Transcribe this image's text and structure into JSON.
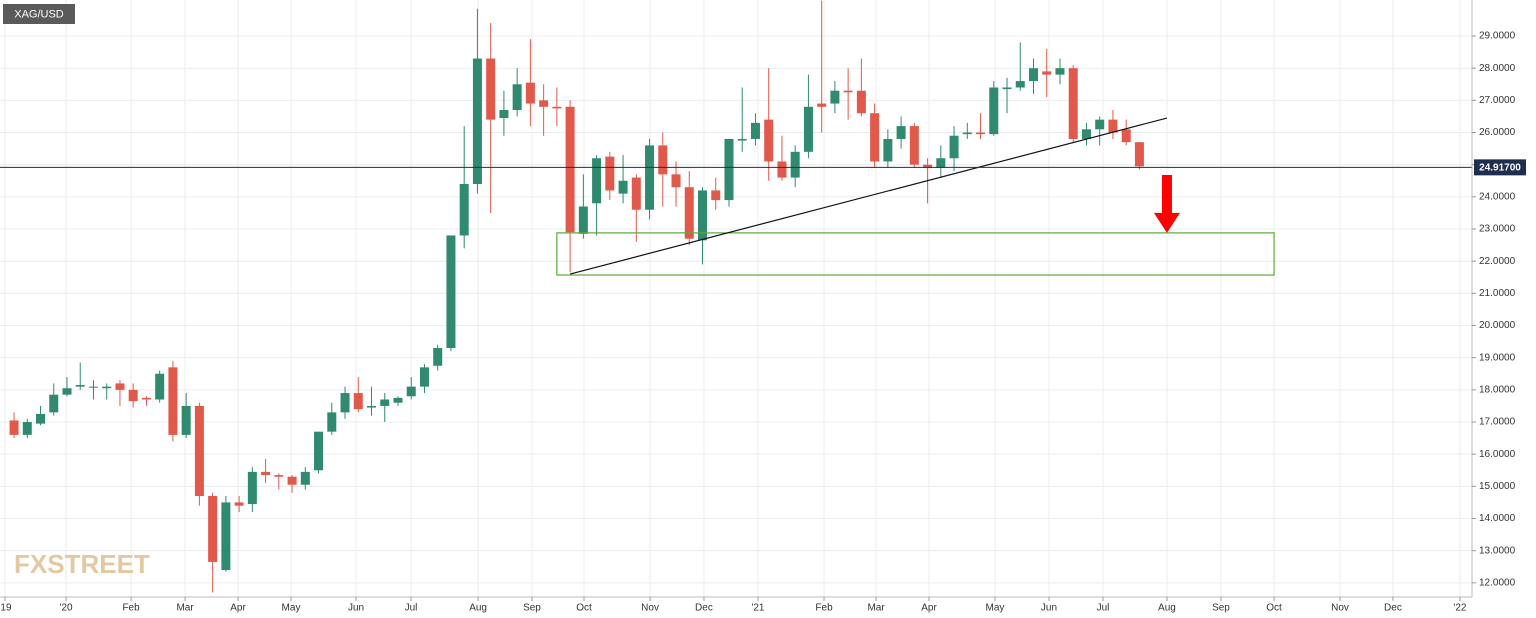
{
  "chart_data": {
    "type": "candlestick",
    "symbol": "XAG/USD",
    "watermark": "FXSTREET",
    "up_color": "#2f8a6f",
    "down_color": "#e0594b",
    "grid": true,
    "x": [
      0,
      1,
      2,
      3,
      4,
      5,
      6,
      7,
      8,
      9,
      10,
      11,
      12,
      13,
      14,
      15,
      16,
      17,
      18,
      19,
      20,
      21,
      22,
      23,
      24,
      25,
      26,
      27,
      28,
      29,
      30,
      31,
      32,
      33,
      34,
      35,
      36,
      37,
      38,
      39,
      40,
      41,
      42,
      43,
      44,
      45,
      46,
      47,
      48,
      49,
      50,
      51,
      52,
      53,
      54,
      55,
      56,
      57,
      58,
      59,
      60,
      61,
      62,
      63,
      64,
      65,
      66,
      67,
      68,
      69,
      70,
      71,
      72,
      73,
      74,
      75,
      76,
      77,
      78,
      79,
      80,
      81,
      82,
      83,
      84,
      85
    ],
    "open": [
      17.05,
      16.6,
      16.95,
      17.3,
      17.85,
      18.1,
      18.1,
      18.05,
      18.2,
      18.0,
      17.75,
      17.7,
      18.7,
      16.6,
      17.5,
      14.7,
      12.4,
      14.5,
      14.45,
      15.45,
      15.35,
      15.3,
      15.05,
      15.5,
      16.7,
      17.3,
      17.9,
      17.45,
      17.5,
      17.6,
      17.8,
      18.1,
      18.75,
      19.3,
      22.8,
      24.4,
      28.3,
      26.45,
      26.7,
      27.55,
      27.0,
      26.8,
      26.8,
      22.85,
      23.8,
      25.25,
      24.1,
      24.6,
      23.6,
      25.6,
      24.7,
      24.3,
      22.65,
      24.2,
      23.9,
      25.75,
      25.8,
      26.4,
      25.1,
      24.6,
      25.4,
      26.9,
      26.9,
      27.3,
      27.3,
      26.6,
      25.1,
      25.8,
      26.2,
      25.0,
      24.9,
      25.2,
      25.95,
      26.0,
      25.95,
      27.35,
      27.4,
      27.6,
      27.9,
      27.8,
      28.0,
      25.8,
      26.1,
      26.4,
      26.1,
      25.7
    ],
    "high": [
      17.3,
      17.1,
      17.5,
      18.2,
      18.4,
      18.85,
      18.3,
      18.2,
      18.3,
      18.2,
      17.8,
      18.6,
      18.9,
      17.9,
      17.6,
      14.8,
      14.7,
      14.7,
      15.6,
      15.85,
      15.4,
      15.35,
      15.6,
      16.7,
      17.6,
      18.1,
      18.4,
      18.1,
      17.9,
      17.8,
      18.4,
      18.8,
      19.4,
      22.8,
      26.2,
      29.85,
      29.4,
      27.3,
      28.0,
      28.9,
      27.5,
      27.4,
      27.0,
      24.7,
      25.3,
      25.4,
      25.3,
      24.7,
      25.8,
      26.0,
      25.1,
      24.8,
      24.3,
      24.6,
      25.8,
      27.4,
      26.6,
      28.0,
      25.9,
      25.6,
      27.8,
      30.1,
      27.6,
      28.0,
      28.3,
      26.9,
      26.1,
      26.5,
      26.3,
      25.2,
      25.6,
      26.2,
      26.3,
      26.6,
      27.6,
      27.7,
      28.8,
      28.3,
      28.6,
      28.3,
      28.1,
      26.3,
      26.5,
      26.7,
      26.4,
      25.7
    ],
    "low": [
      16.5,
      16.5,
      16.9,
      17.2,
      17.8,
      18.0,
      17.7,
      17.7,
      17.5,
      17.45,
      17.5,
      17.6,
      16.4,
      16.5,
      14.4,
      11.7,
      12.35,
      14.2,
      14.2,
      15.1,
      14.9,
      14.8,
      14.9,
      15.4,
      16.6,
      17.1,
      17.3,
      17.2,
      17.0,
      17.5,
      17.7,
      17.9,
      18.6,
      19.2,
      22.4,
      24.1,
      23.5,
      25.9,
      26.5,
      26.2,
      25.9,
      26.2,
      21.65,
      22.7,
      22.8,
      23.9,
      23.8,
      22.6,
      23.3,
      23.7,
      23.7,
      22.5,
      21.9,
      23.6,
      23.7,
      25.4,
      25.6,
      24.5,
      24.5,
      24.3,
      25.2,
      26.0,
      26.6,
      26.4,
      26.5,
      24.9,
      24.9,
      25.5,
      24.9,
      23.8,
      24.6,
      24.8,
      25.8,
      25.8,
      25.9,
      26.6,
      27.3,
      27.2,
      27.1,
      27.5,
      25.7,
      25.6,
      25.6,
      25.8,
      25.6,
      24.85
    ],
    "close": [
      16.6,
      17.0,
      17.25,
      17.85,
      18.05,
      18.15,
      18.1,
      18.1,
      18.0,
      17.65,
      17.7,
      18.5,
      16.6,
      17.5,
      14.7,
      12.65,
      14.5,
      14.4,
      15.45,
      15.35,
      15.3,
      15.05,
      15.45,
      16.7,
      17.3,
      17.9,
      17.4,
      17.5,
      17.7,
      17.75,
      18.1,
      18.7,
      19.3,
      22.8,
      24.4,
      28.3,
      26.4,
      26.7,
      27.5,
      26.9,
      26.8,
      26.75,
      22.9,
      23.7,
      25.2,
      24.2,
      24.5,
      23.6,
      25.6,
      24.7,
      24.3,
      22.7,
      24.2,
      23.9,
      25.8,
      25.8,
      26.3,
      25.1,
      24.6,
      25.4,
      26.8,
      26.8,
      27.3,
      27.25,
      26.6,
      25.1,
      25.8,
      26.2,
      25.0,
      24.9,
      25.2,
      25.9,
      26.0,
      25.95,
      27.4,
      27.4,
      27.6,
      28.0,
      27.8,
      28.0,
      25.8,
      26.1,
      26.4,
      26.0,
      25.7,
      24.95
    ],
    "xlim": [
      -1.06,
      110.12
    ],
    "ylim": [
      11.56,
      30.12
    ],
    "xticks": [
      {
        "value": -0.68,
        "label": "'19"
      },
      {
        "value": 3.93,
        "label": "'20"
      },
      {
        "value": 8.84,
        "label": "Feb"
      },
      {
        "value": 12.92,
        "label": "Mar"
      },
      {
        "value": 16.92,
        "label": "Apr"
      },
      {
        "value": 20.92,
        "label": "May"
      },
      {
        "value": 25.83,
        "label": "Jun"
      },
      {
        "value": 29.98,
        "label": "Jul"
      },
      {
        "value": 35.05,
        "label": "Aug"
      },
      {
        "value": 39.12,
        "label": "Sep"
      },
      {
        "value": 43.05,
        "label": "Oct"
      },
      {
        "value": 48.04,
        "label": "Nov"
      },
      {
        "value": 52.11,
        "label": "Dec"
      },
      {
        "value": 56.19,
        "label": "'21"
      },
      {
        "value": 61.18,
        "label": "Feb"
      },
      {
        "value": 65.11,
        "label": "Mar"
      },
      {
        "value": 69.11,
        "label": "Apr"
      },
      {
        "value": 74.09,
        "label": "May"
      },
      {
        "value": 78.17,
        "label": "Jun"
      },
      {
        "value": 82.25,
        "label": "Jul"
      },
      {
        "value": 87.08,
        "label": "Aug"
      },
      {
        "value": 91.16,
        "label": "Sep"
      },
      {
        "value": 95.17,
        "label": "Oct"
      },
      {
        "value": 100.15,
        "label": "Nov"
      },
      {
        "value": 104.15,
        "label": "Dec"
      },
      {
        "value": 109.21,
        "label": "'22"
      }
    ],
    "yticks": [
      {
        "value": 12,
        "label": "12.0000"
      },
      {
        "value": 13,
        "label": "13.0000"
      },
      {
        "value": 14,
        "label": "14.0000"
      },
      {
        "value": 15,
        "label": "15.0000"
      },
      {
        "value": 16,
        "label": "16.0000"
      },
      {
        "value": 17,
        "label": "17.0000"
      },
      {
        "value": 18,
        "label": "18.0000"
      },
      {
        "value": 19,
        "label": "19.0000"
      },
      {
        "value": 20,
        "label": "20.0000"
      },
      {
        "value": 21,
        "label": "21.0000"
      },
      {
        "value": 22,
        "label": "22.0000"
      },
      {
        "value": 23,
        "label": "23.0000"
      },
      {
        "value": 24,
        "label": "24.0000"
      },
      {
        "value": 25,
        "label": "25.0000"
      },
      {
        "value": 26,
        "label": "26.0000"
      },
      {
        "value": 27,
        "label": "27.0000"
      },
      {
        "value": 28,
        "label": "28.0000"
      },
      {
        "value": 29,
        "label": "29.0000"
      }
    ],
    "current_price": {
      "value": 24.917,
      "label": "24.91700",
      "color": "#1f2d4f"
    },
    "trendline": {
      "x": [
        42,
        87.08
      ],
      "y": [
        21.6,
        26.45
      ],
      "color": "#111111"
    },
    "zone": {
      "x": [
        41,
        95.17
      ],
      "y": [
        22.88,
        21.57
      ],
      "color": "#5aaa3a"
    },
    "arrow": {
      "x": 87.08,
      "y": [
        24.68,
        22.88
      ],
      "color": "#ff0000"
    }
  }
}
